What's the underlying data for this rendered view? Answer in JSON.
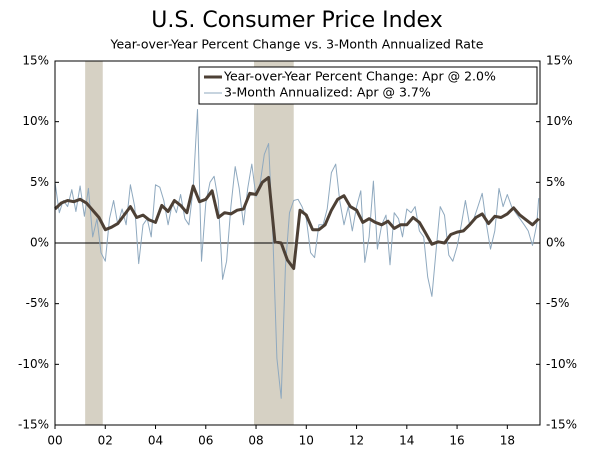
{
  "chart_data": {
    "type": "line",
    "title": "U.S. Consumer Price Index",
    "subtitle": "Year-over-Year Percent Change vs. 3-Month Annualized Rate",
    "xlim": [
      2000,
      2019.3
    ],
    "xticks": [
      {
        "value": 2000,
        "label": "00"
      },
      {
        "value": 2002,
        "label": "02"
      },
      {
        "value": 2004,
        "label": "04"
      },
      {
        "value": 2006,
        "label": "06"
      },
      {
        "value": 2008,
        "label": "08"
      },
      {
        "value": 2010,
        "label": "10"
      },
      {
        "value": 2012,
        "label": "12"
      },
      {
        "value": 2014,
        "label": "14"
      },
      {
        "value": 2016,
        "label": "16"
      },
      {
        "value": 2018,
        "label": "18"
      }
    ],
    "ylim": [
      -15,
      15
    ],
    "yticks": [
      {
        "value": -15,
        "label": "-15%"
      },
      {
        "value": -10,
        "label": "-10%"
      },
      {
        "value": -5,
        "label": "-5%"
      },
      {
        "value": 0,
        "label": "0%"
      },
      {
        "value": 5,
        "label": "5%"
      },
      {
        "value": 10,
        "label": "10%"
      },
      {
        "value": 15,
        "label": "15%"
      }
    ],
    "y2lim": [
      -15,
      15
    ],
    "recessions": [
      [
        2001.2,
        2001.9
      ],
      [
        2007.92,
        2009.5
      ]
    ],
    "recession_color": "#d6d1c4",
    "zero_line": true,
    "legend": "upper right",
    "series": [
      {
        "name": "Year-over-Year Percent Change: Apr @ 2.0%",
        "color": "#4d4035",
        "width": 3,
        "x": [
          2000,
          2000.25,
          2000.5,
          2000.75,
          2001,
          2001.25,
          2001.5,
          2001.75,
          2002,
          2002.25,
          2002.5,
          2002.75,
          2003,
          2003.25,
          2003.5,
          2003.75,
          2004,
          2004.25,
          2004.5,
          2004.75,
          2005,
          2005.25,
          2005.5,
          2005.75,
          2006,
          2006.25,
          2006.5,
          2006.75,
          2007,
          2007.25,
          2007.5,
          2007.75,
          2008,
          2008.25,
          2008.5,
          2008.75,
          2009,
          2009.25,
          2009.5,
          2009.75,
          2010,
          2010.25,
          2010.5,
          2010.75,
          2011,
          2011.25,
          2011.5,
          2011.75,
          2012,
          2012.25,
          2012.5,
          2012.75,
          2013,
          2013.25,
          2013.5,
          2013.75,
          2014,
          2014.25,
          2014.5,
          2014.75,
          2015,
          2015.25,
          2015.5,
          2015.75,
          2016,
          2016.25,
          2016.5,
          2016.75,
          2017,
          2017.25,
          2017.5,
          2017.75,
          2018,
          2018.25,
          2018.5,
          2018.75,
          2019,
          2019.25
        ],
        "values": [
          2.8,
          3.3,
          3.5,
          3.4,
          3.6,
          3.3,
          2.7,
          2.1,
          1.1,
          1.3,
          1.6,
          2.3,
          3.0,
          2.1,
          2.3,
          1.9,
          1.7,
          3.1,
          2.6,
          3.5,
          3.1,
          2.5,
          4.7,
          3.4,
          3.6,
          4.3,
          2.1,
          2.5,
          2.4,
          2.7,
          2.8,
          4.1,
          4.0,
          5.0,
          5.4,
          0.1,
          0.0,
          -1.4,
          -2.1,
          2.7,
          2.3,
          1.1,
          1.1,
          1.5,
          2.7,
          3.6,
          3.9,
          3.0,
          2.7,
          1.7,
          2.0,
          1.7,
          1.5,
          1.8,
          1.2,
          1.5,
          1.5,
          2.1,
          1.7,
          0.8,
          -0.1,
          0.1,
          0.0,
          0.7,
          0.9,
          1.0,
          1.5,
          2.1,
          2.4,
          1.6,
          2.2,
          2.1,
          2.4,
          2.9,
          2.3,
          1.9,
          1.5,
          2.0
        ]
      },
      {
        "name": "3-Month Annualized: Apr @ 3.7%",
        "color": "#8fa9bf",
        "width": 1,
        "x": [
          2000,
          2000.17,
          2000.33,
          2000.5,
          2000.67,
          2000.83,
          2001,
          2001.17,
          2001.33,
          2001.5,
          2001.67,
          2001.83,
          2002,
          2002.17,
          2002.33,
          2002.5,
          2002.67,
          2002.83,
          2003,
          2003.17,
          2003.33,
          2003.5,
          2003.67,
          2003.83,
          2004,
          2004.17,
          2004.33,
          2004.5,
          2004.67,
          2004.83,
          2005,
          2005.17,
          2005.33,
          2005.5,
          2005.67,
          2005.83,
          2006,
          2006.17,
          2006.33,
          2006.5,
          2006.67,
          2006.83,
          2007,
          2007.17,
          2007.33,
          2007.5,
          2007.67,
          2007.83,
          2008,
          2008.17,
          2008.33,
          2008.5,
          2008.67,
          2008.83,
          2009,
          2009.17,
          2009.33,
          2009.5,
          2009.67,
          2009.83,
          2010,
          2010.17,
          2010.33,
          2010.5,
          2010.67,
          2010.83,
          2011,
          2011.17,
          2011.33,
          2011.5,
          2011.67,
          2011.83,
          2012,
          2012.17,
          2012.33,
          2012.5,
          2012.67,
          2012.83,
          2013,
          2013.17,
          2013.33,
          2013.5,
          2013.67,
          2013.83,
          2014,
          2014.17,
          2014.33,
          2014.5,
          2014.67,
          2014.83,
          2015,
          2015.17,
          2015.33,
          2015.5,
          2015.67,
          2015.83,
          2016,
          2016.17,
          2016.33,
          2016.5,
          2016.67,
          2016.83,
          2017,
          2017.17,
          2017.33,
          2017.5,
          2017.67,
          2017.83,
          2018,
          2018.17,
          2018.33,
          2018.5,
          2018.67,
          2018.83,
          2019,
          2019.17,
          2019.25
        ],
        "values": [
          5.0,
          2.5,
          3.5,
          3.0,
          4.4,
          2.6,
          4.7,
          2.2,
          4.5,
          0.5,
          2.0,
          -0.8,
          -1.5,
          2.0,
          3.5,
          1.5,
          2.8,
          1.5,
          4.8,
          3.0,
          -1.7,
          1.5,
          2.0,
          0.5,
          4.8,
          4.6,
          3.5,
          1.5,
          3.3,
          2.5,
          4.0,
          2.0,
          1.5,
          4.5,
          11.0,
          -1.5,
          3.3,
          5.0,
          5.5,
          3.5,
          -3.0,
          -1.5,
          3.0,
          6.3,
          4.5,
          1.5,
          4.5,
          6.5,
          3.8,
          5.0,
          7.3,
          8.2,
          0.5,
          -9.5,
          -12.8,
          -2.0,
          2.5,
          3.5,
          3.6,
          3.0,
          2.0,
          -0.8,
          -1.2,
          1.5,
          1.5,
          2.8,
          5.8,
          6.5,
          3.5,
          1.5,
          3.0,
          1.0,
          3.0,
          4.3,
          -1.6,
          0.5,
          5.1,
          -0.5,
          1.5,
          2.3,
          -1.8,
          2.5,
          2.0,
          0.5,
          2.8,
          2.5,
          3.0,
          1.0,
          0.5,
          -2.8,
          -4.4,
          -0.5,
          3.0,
          2.3,
          -1.0,
          -1.5,
          -0.3,
          1.5,
          3.5,
          1.5,
          2.0,
          3.0,
          4.1,
          1.5,
          -0.5,
          1.0,
          4.5,
          3.0,
          4.0,
          3.0,
          2.5,
          2.0,
          1.5,
          1.0,
          -0.2,
          1.5,
          3.7
        ]
      }
    ]
  }
}
